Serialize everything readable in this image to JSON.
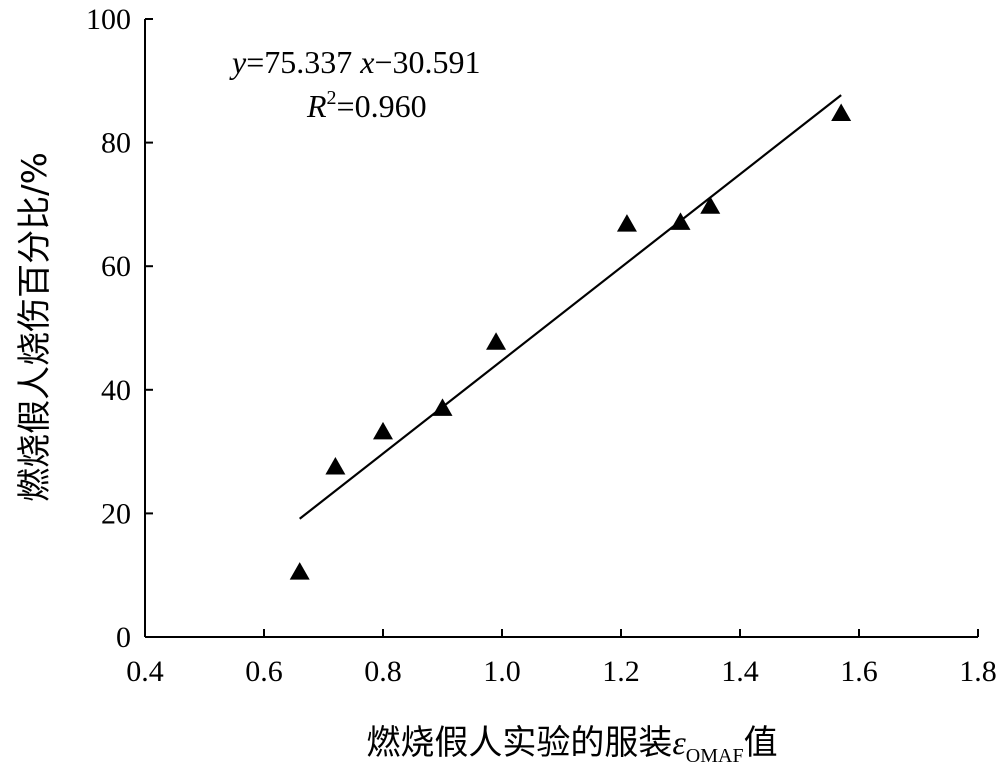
{
  "chart_data": {
    "type": "scatter",
    "xlabel_main": "燃烧假人实验的服装",
    "xlabel_symbol": "ε",
    "xlabel_subscript": "OMAF",
    "xlabel_suffix": "值",
    "ylabel": "燃烧假人烧伤百分比/%",
    "xlim": [
      0.4,
      1.8
    ],
    "ylim": [
      0,
      100
    ],
    "xticks": [
      "0.4",
      "0.6",
      "0.8",
      "1.0",
      "1.2",
      "1.4",
      "1.6",
      "1.8"
    ],
    "yticks": [
      "0",
      "20",
      "40",
      "60",
      "80",
      "100"
    ],
    "grid": false,
    "legend": "none",
    "marker": "triangle",
    "color": "#000000",
    "points": [
      {
        "x": 0.66,
        "y": 10.5
      },
      {
        "x": 0.72,
        "y": 27.5
      },
      {
        "x": 0.8,
        "y": 33.2
      },
      {
        "x": 0.9,
        "y": 37.0
      },
      {
        "x": 0.99,
        "y": 47.7
      },
      {
        "x": 1.21,
        "y": 66.8
      },
      {
        "x": 1.3,
        "y": 67.1
      },
      {
        "x": 1.35,
        "y": 69.7
      },
      {
        "x": 1.57,
        "y": 84.7
      }
    ],
    "fit": {
      "slope": 75.337,
      "intercept": -30.591,
      "x_range": [
        0.66,
        1.57
      ],
      "equation_y": "y",
      "equation_body": "=75.337 ",
      "equation_x": "x",
      "equation_tail": "−30.591",
      "r2_symbol": "R",
      "r2_exp": "2",
      "r2_value": "=0.960"
    }
  }
}
